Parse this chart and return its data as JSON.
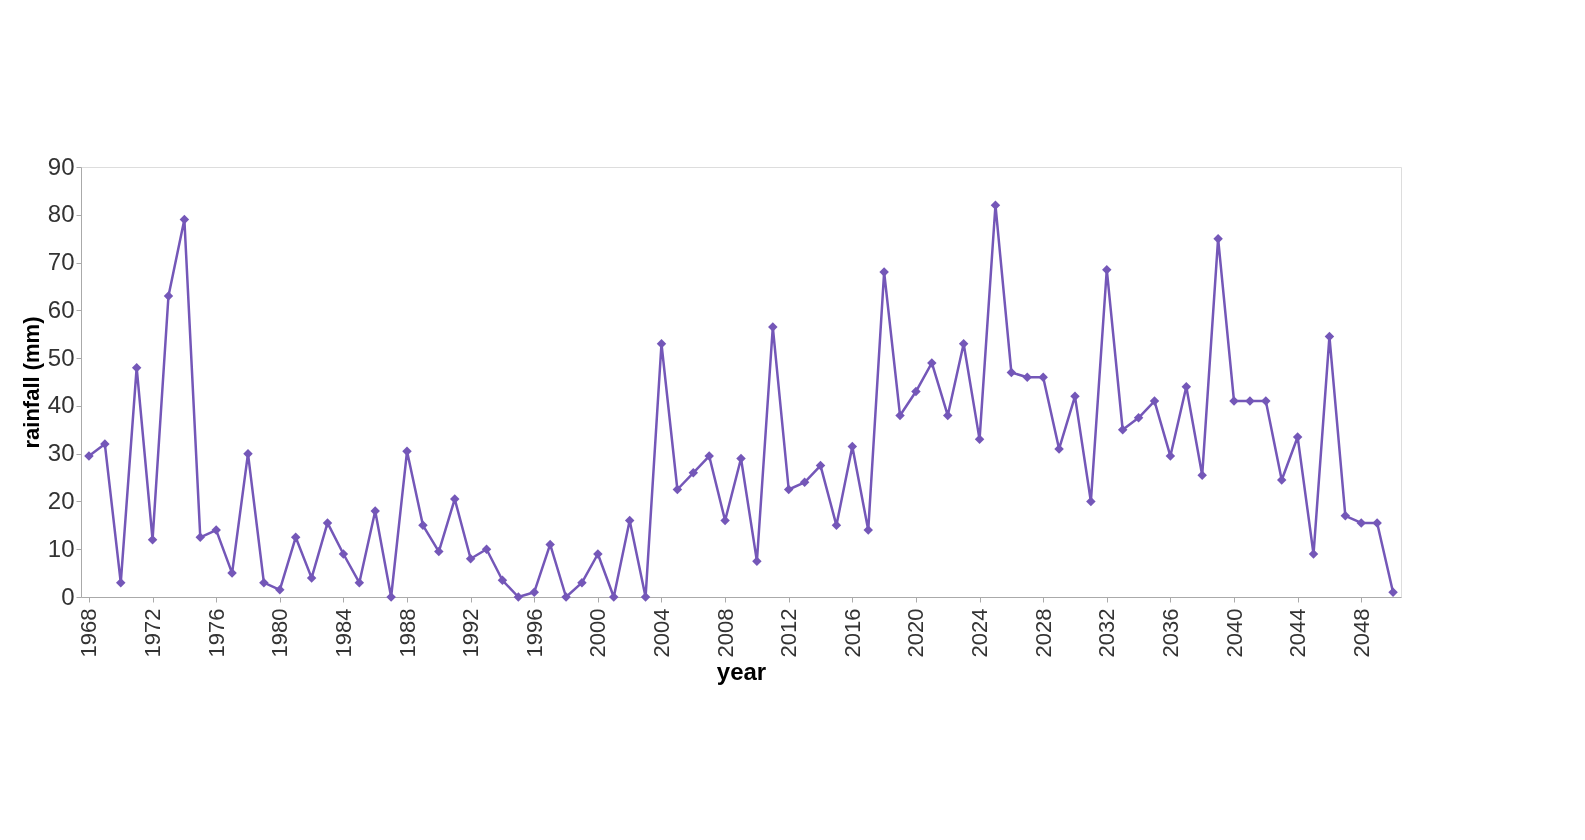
{
  "chart_data": {
    "type": "line",
    "xlabel": "year",
    "ylabel": "rainfall (mm)",
    "x": [
      1968,
      1969,
      1970,
      1971,
      1972,
      1973,
      1974,
      1975,
      1976,
      1977,
      1978,
      1979,
      1980,
      1981,
      1982,
      1983,
      1984,
      1985,
      1986,
      1987,
      1988,
      1989,
      1990,
      1991,
      1992,
      1993,
      1994,
      1995,
      1996,
      1997,
      1998,
      1999,
      2000,
      2001,
      2002,
      2003,
      2004,
      2005,
      2006,
      2007,
      2008,
      2009,
      2010,
      2011,
      2012,
      2013,
      2014,
      2015,
      2016,
      2017,
      2018,
      2019,
      2020,
      2021,
      2022,
      2023,
      2024,
      2025,
      2026,
      2027,
      2028,
      2029,
      2030,
      2031,
      2032,
      2033,
      2034,
      2035,
      2036,
      2037,
      2038,
      2039,
      2040,
      2041,
      2042,
      2043,
      2044,
      2045,
      2046,
      2047,
      2048,
      2049,
      2050
    ],
    "series": [
      {
        "color": "#7457b8",
        "values": [
          29.5,
          32,
          3,
          48,
          12,
          63,
          79,
          12.5,
          14,
          5,
          30,
          3,
          1.5,
          12.5,
          4,
          15.5,
          9,
          3,
          18,
          0,
          30.5,
          15,
          9.5,
          20.5,
          8,
          10,
          3.5,
          0,
          1,
          11,
          0,
          3,
          9,
          0,
          16,
          0,
          53,
          22.5,
          26,
          29.5,
          16,
          29,
          7.5,
          56.5,
          22.5,
          24,
          27.5,
          15,
          31.5,
          14,
          68,
          38,
          43,
          49,
          38,
          53,
          33,
          82,
          47,
          46,
          46,
          31,
          42,
          20,
          68.5,
          35,
          37.5,
          41,
          29.5,
          44,
          25.5,
          75,
          41,
          41,
          41,
          24.5,
          33.5,
          9,
          54.5,
          17,
          15.5,
          15.5,
          1
        ]
      }
    ],
    "xlim": [
      1967.5,
      2050.5
    ],
    "xticks": [
      1968,
      1972,
      1976,
      1980,
      1984,
      1988,
      1992,
      1996,
      2000,
      2004,
      2008,
      2012,
      2016,
      2020,
      2024,
      2028,
      2032,
      2036,
      2040,
      2044,
      2048
    ],
    "ylim": [
      0,
      90
    ],
    "yticks": [
      0,
      10,
      20,
      30,
      40,
      50,
      60,
      70,
      80,
      90
    ],
    "marker": "diamond",
    "line_style": "solid",
    "grid": false,
    "legend": false
  }
}
